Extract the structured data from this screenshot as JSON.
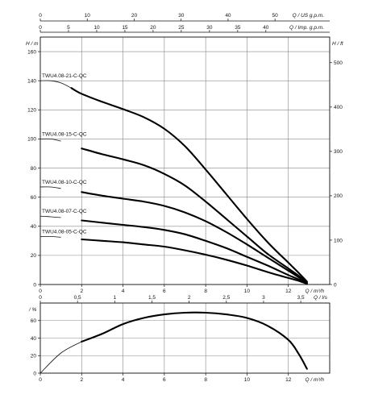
{
  "chart_data": [
    {
      "type": "line",
      "title": "",
      "xlabel": "Q / m³/h",
      "ylabel": "H / m",
      "y2label": "H / ft",
      "top_axis_us_label": "Q / US g.p.m.",
      "top_axis_imp_label": "Q / Imp. g.p.m.",
      "xlim": [
        0,
        13
      ],
      "ylim": [
        0,
        170
      ],
      "y2lim": [
        0,
        557.7
      ],
      "grid": true,
      "x_ticks": [
        0,
        2,
        4,
        6,
        8,
        10,
        12
      ],
      "y_ticks": [
        0,
        20,
        40,
        60,
        80,
        100,
        120,
        140,
        160
      ],
      "y2_ticks": [
        0,
        100,
        200,
        300,
        400,
        500
      ],
      "top_us_ticks": [
        0,
        10,
        20,
        30,
        40,
        50
      ],
      "top_imp_ticks": [
        0,
        5,
        10,
        15,
        20,
        25,
        30,
        35,
        40
      ],
      "series": [
        {
          "name": "TWU4.08-21-C-QC",
          "x": [
            0,
            0.5,
            1,
            1.5,
            2,
            3,
            4,
            5,
            6,
            7,
            8,
            9,
            10,
            11,
            12,
            12.5,
            12.9
          ],
          "y": [
            140,
            140,
            138.5,
            135,
            131,
            125.5,
            120.5,
            115,
            107,
            95,
            79,
            62,
            45,
            29,
            15,
            8,
            2
          ]
        },
        {
          "name": "TWU4.08-15-C-QC",
          "x": [
            0,
            0.5,
            1,
            2,
            3,
            4,
            5,
            6,
            7,
            8,
            9,
            10,
            11,
            12,
            12.5,
            12.9
          ],
          "y": [
            100,
            100,
            98.5,
            93.5,
            89.5,
            86,
            82,
            76,
            68,
            57,
            45,
            33,
            21,
            11,
            6,
            1.5
          ]
        },
        {
          "name": "TWU4.08-10-C-QC",
          "x": [
            0,
            0.5,
            1,
            2,
            3,
            4,
            5,
            6,
            7,
            8,
            9,
            10,
            11,
            12,
            12.5,
            12.9
          ],
          "y": [
            67,
            67,
            66,
            63.5,
            61,
            59,
            57,
            54,
            49.5,
            43.5,
            36,
            27.5,
            18.5,
            9.5,
            5,
            1
          ]
        },
        {
          "name": "TWU4.08-07-C-QC",
          "x": [
            0,
            0.5,
            1,
            2,
            3,
            4,
            5,
            6,
            7,
            8,
            9,
            10,
            11,
            12,
            12.5,
            12.9
          ],
          "y": [
            47,
            46.5,
            46,
            44,
            42.5,
            41,
            39.5,
            37.5,
            34.5,
            30,
            25,
            19,
            13,
            6.5,
            3.5,
            0.5
          ]
        },
        {
          "name": "TWU4.08-05-C-QC",
          "x": [
            0,
            0.5,
            1,
            2,
            3,
            4,
            5,
            6,
            7,
            8,
            9,
            10,
            11,
            12,
            12.5,
            12.9
          ],
          "y": [
            33,
            33,
            32.5,
            31,
            30,
            29,
            27.5,
            26,
            23.5,
            20.5,
            17,
            13,
            8.5,
            4.5,
            2.5,
            0.5
          ]
        }
      ]
    },
    {
      "type": "line",
      "title": "",
      "xlabel": "Q / m³/h",
      "ylabel": "/ %",
      "top_axis_label": "Q / l/s",
      "xlim": [
        0,
        13
      ],
      "ylim": [
        0,
        80
      ],
      "grid": true,
      "x_ticks": [
        0,
        2,
        4,
        6,
        8,
        10,
        12
      ],
      "y_ticks": [
        0,
        20,
        40,
        60
      ],
      "top_ls_ticks": [
        "0",
        "0,5",
        "1",
        "1,5",
        "2",
        "2,5",
        "3",
        "3,5"
      ],
      "series": [
        {
          "name": "",
          "x": [
            0,
            1,
            2,
            3,
            4,
            5,
            6,
            7,
            8,
            9,
            10,
            11,
            12,
            12.5,
            12.9
          ],
          "y": [
            0,
            23,
            36,
            45,
            56,
            63,
            67,
            69,
            69,
            67,
            63,
            54,
            38,
            22,
            5
          ]
        }
      ]
    }
  ]
}
